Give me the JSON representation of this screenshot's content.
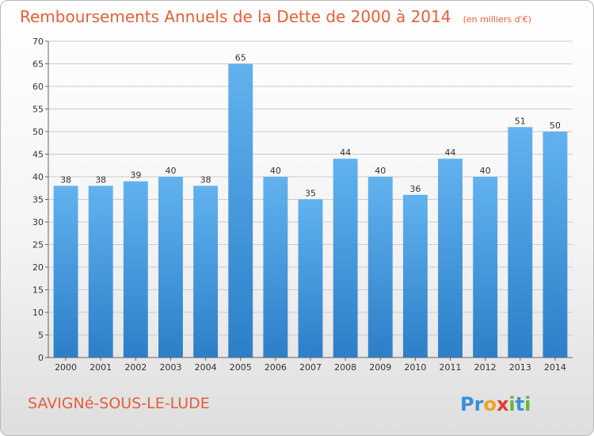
{
  "chart_data": {
    "type": "bar",
    "title": "Remboursements Annuels de la Dette de 2000 à 2014",
    "subtitle": "(en milliers d'€)",
    "xlabel": "",
    "ylabel": "",
    "categories": [
      "2000",
      "2001",
      "2002",
      "2003",
      "2004",
      "2005",
      "2006",
      "2007",
      "2008",
      "2009",
      "2010",
      "2011",
      "2012",
      "2013",
      "2014"
    ],
    "values": [
      38,
      38,
      39,
      40,
      38,
      65,
      40,
      35,
      44,
      40,
      36,
      44,
      40,
      51,
      50
    ],
    "ylim": [
      0,
      70
    ],
    "yticks": [
      0,
      5,
      10,
      15,
      20,
      25,
      30,
      35,
      40,
      45,
      50,
      55,
      60,
      65,
      70
    ],
    "grid": true,
    "legend": "none"
  },
  "footer": {
    "city": "SAVIGNé-SOUS-LE-LUDE",
    "brand": "Proxiti",
    "brand_letters": [
      {
        "ch": "P",
        "color": "#3a8fd6"
      },
      {
        "ch": "r",
        "color": "#3a8fd6"
      },
      {
        "ch": "o",
        "color": "#f2a21c"
      },
      {
        "ch": "x",
        "color": "#e23b2e"
      },
      {
        "ch": "i",
        "color": "#6cb33f"
      },
      {
        "ch": "t",
        "color": "#3a8fd6"
      },
      {
        "ch": "i",
        "color": "#6cb33f"
      }
    ]
  },
  "colors": {
    "bar_top": "#62b2ef",
    "bar_bottom": "#2c7fc8",
    "grid": "#cccccc",
    "axis": "#666666",
    "title": "#e0603a"
  }
}
